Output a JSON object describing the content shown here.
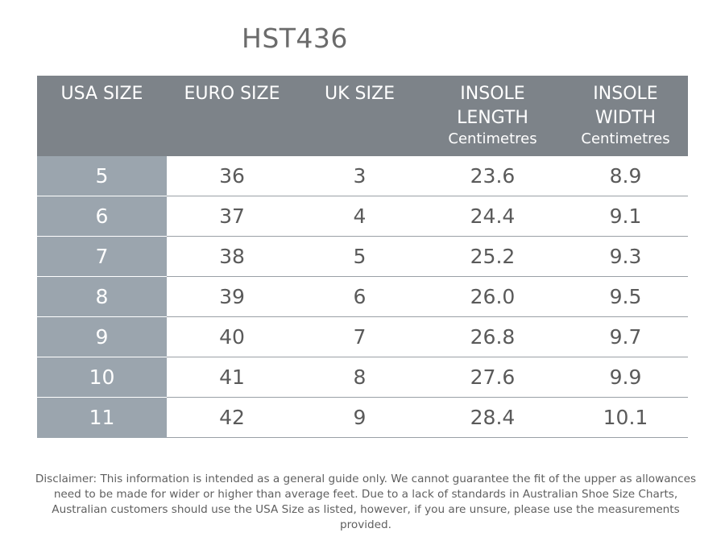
{
  "title": "HST436",
  "headers": {
    "usa": "USA SIZE",
    "euro": "EURO SIZE",
    "uk": "UK SIZE",
    "length_line1": "INSOLE",
    "length_line2": "LENGTH",
    "length_unit": "Centimetres",
    "width_line1": "INSOLE",
    "width_line2": "WIDTH",
    "width_unit": "Centimetres"
  },
  "rows": [
    {
      "usa": "5",
      "euro": "36",
      "uk": "3",
      "length": "23.6",
      "width": "8.9"
    },
    {
      "usa": "6",
      "euro": "37",
      "uk": "4",
      "length": "24.4",
      "width": "9.1"
    },
    {
      "usa": "7",
      "euro": "38",
      "uk": "5",
      "length": "25.2",
      "width": "9.3"
    },
    {
      "usa": "8",
      "euro": "39",
      "uk": "6",
      "length": "26.0",
      "width": "9.5"
    },
    {
      "usa": "9",
      "euro": "40",
      "uk": "7",
      "length": "26.8",
      "width": "9.7"
    },
    {
      "usa": "10",
      "euro": "41",
      "uk": "8",
      "length": "27.6",
      "width": "9.9"
    },
    {
      "usa": "11",
      "euro": "42",
      "uk": "9",
      "length": "28.4",
      "width": "10.1"
    }
  ],
  "disclaimer": "Disclaimer: This information is intended as a general guide only. We cannot guarantee the fit of the upper as allowances need to be made for wider or higher than average feet. Due to a lack of standards in Australian Shoe Size Charts, Australian customers should use the USA Size as listed, however, if you are unsure, please use the measurements provided.",
  "colors": {
    "header_bg": "#7d8389",
    "usa_column_bg": "#9ba5ae",
    "row_divider": "#9aa0a6",
    "text": "#5a5a5a"
  }
}
